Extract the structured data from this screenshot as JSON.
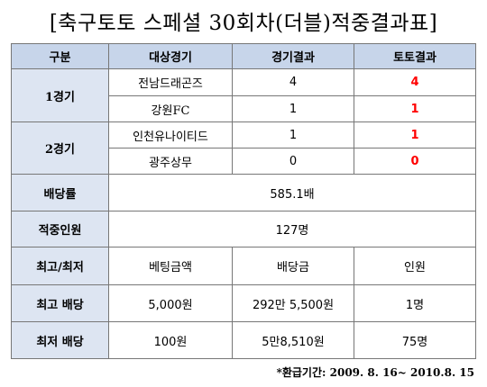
{
  "title": "[축구토토 스페셜 30회차(더블)적중결과표]",
  "header": {
    "col1": "구분",
    "col2": "대상경기",
    "col3": "경기결과",
    "col4": "토토결과"
  },
  "games": [
    {
      "label": "1경기",
      "teams": [
        {
          "name": "전남드래곤즈",
          "score": "4",
          "toto": "4"
        },
        {
          "name": "강원FC",
          "score": "1",
          "toto": "1"
        }
      ]
    },
    {
      "label": "2경기",
      "teams": [
        {
          "name": "인천유나이티드",
          "score": "1",
          "toto": "1"
        },
        {
          "name": "광주상무",
          "score": "0",
          "toto": "0"
        }
      ]
    }
  ],
  "dividend": {
    "label": "배당률",
    "value": "585.1배"
  },
  "winners": {
    "label": "적중인원",
    "value": "127명"
  },
  "extremes": {
    "header": {
      "label": "최고/최저",
      "bet": "베팅금액",
      "payout": "배당금",
      "count": "인원"
    },
    "max": {
      "label": "최고 배당",
      "bet": "5,000원",
      "payout": "292만 5,500원",
      "count": "1명"
    },
    "min": {
      "label": "최저 배당",
      "bet": "100원",
      "payout": "5만8,510원",
      "count": "75명"
    }
  },
  "footnote": "*환급기간: 2009. 8. 16~ 2010.8. 15",
  "colors": {
    "header_bg": "#c7d5ea",
    "label_bg": "#dde5f2",
    "result_red": "#ff0000"
  }
}
